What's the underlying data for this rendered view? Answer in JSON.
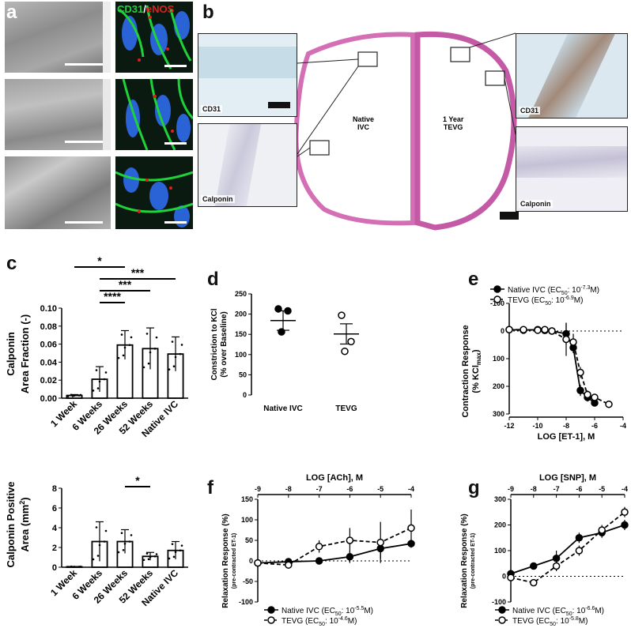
{
  "panels": {
    "a": "a",
    "b": "b",
    "c": "c",
    "d": "d",
    "e": "e",
    "f": "f",
    "g": "g"
  },
  "panel_a": {
    "label_cd31": "CD31",
    "label_slash": "/",
    "label_enos": "eNOS",
    "colors": {
      "cd31": "#1fd23a",
      "enos": "#e81b1b",
      "nuclei": "#2a63d6"
    }
  },
  "panel_b": {
    "native_label_1": "Native",
    "native_label_2": "IVC",
    "tevg_label_1": "1 Year",
    "tevg_label_2": "TEVG",
    "inset_cd31_left": "CD31",
    "inset_calponin_left": "Calponin",
    "inset_cd31_right": "CD31",
    "inset_calponin_right": "Calponin"
  },
  "chart_data": [
    {
      "id": "c_top",
      "type": "bar",
      "categories": [
        "1 Week",
        "6 Weeks",
        "26 Weeks",
        "52 Weeks",
        "Native IVC"
      ],
      "values": [
        0.003,
        0.021,
        0.059,
        0.055,
        0.049
      ],
      "errors": [
        0.001,
        0.014,
        0.016,
        0.023,
        0.019
      ],
      "ylabel_1": "Calponin",
      "ylabel_2": "Area Fraction (-)",
      "ylim": [
        0,
        0.1
      ],
      "yticks": [
        "0.00",
        "0.02",
        "0.04",
        "0.06",
        "0.08",
        "0.10"
      ],
      "significance": [
        {
          "from": 0,
          "to": 2,
          "label": "*"
        },
        {
          "from": 1,
          "to": 4,
          "label": "***"
        },
        {
          "from": 1,
          "to": 3,
          "label": "***"
        },
        {
          "from": 1,
          "to": 2,
          "label": "****"
        }
      ]
    },
    {
      "id": "c_bottom",
      "type": "bar",
      "categories": [
        "1 Week",
        "6 Weeks",
        "26 Weeks",
        "52 Weeks",
        "Native IVC"
      ],
      "values": [
        0.05,
        2.6,
        2.6,
        1.1,
        1.7
      ],
      "errors": [
        0.02,
        2.0,
        1.2,
        0.4,
        0.9
      ],
      "ylabel_1": "Calponin Positive",
      "ylabel_2": "Area (mm",
      "ylabel_sup": "2",
      "ylabel_end": ")",
      "ylim": [
        0,
        8
      ],
      "yticks": [
        "0",
        "2",
        "4",
        "6",
        "8"
      ],
      "significance": [
        {
          "from": 1,
          "to": 3,
          "label": "*"
        },
        {
          "from": 2,
          "to": 3,
          "label": "*"
        }
      ]
    },
    {
      "id": "d",
      "type": "scatter",
      "categories": [
        "Native IVC",
        "TEVG"
      ],
      "points": [
        [
          213,
          208,
          156
        ],
        [
          197,
          132,
          108
        ]
      ],
      "means": [
        184,
        151
      ],
      "sem": [
        24,
        25
      ],
      "ylabel_1": "Constriction to KCl",
      "ylabel_2": "(% over Baseline)",
      "ylim": [
        0,
        250
      ],
      "yticks": [
        "0",
        "50",
        "100",
        "150",
        "200",
        "250"
      ]
    },
    {
      "id": "e",
      "type": "line",
      "xlabel": "LOG [ET-1], M",
      "ylabel_1": "Contraction Response",
      "ylabel_2": "(% KCl",
      "ylabel_sub": "max",
      "ylabel_end": ")",
      "xlim": [
        -12,
        -4
      ],
      "ylim": [
        -100,
        300
      ],
      "xticks": [
        "-12",
        "-10",
        "-8",
        "-6",
        "-4"
      ],
      "yticks": [
        "-100",
        "0",
        "100",
        "200",
        "300"
      ],
      "series": [
        {
          "legend_prefix": "Native IVC (EC",
          "legend_sub": "50",
          "legend_mid": ": 10",
          "legend_sup": "-7.3",
          "legend_end": "M)",
          "x": [
            -12,
            -11,
            -10,
            -9.5,
            -9,
            -8,
            -7.5,
            -7,
            -6.5,
            -6
          ],
          "y": [
            -5,
            -3,
            -5,
            -2,
            0,
            10,
            60,
            215,
            240,
            260
          ],
          "err": [
            0,
            0,
            0,
            0,
            0,
            40,
            20,
            20,
            15,
            10
          ]
        },
        {
          "legend_prefix": "TEVG (EC",
          "legend_sub": "50",
          "legend_mid": ": 10",
          "legend_sup": "-6.9",
          "legend_end": "M)",
          "x": [
            -12,
            -11,
            -10,
            -9.5,
            -9,
            -8,
            -7.5,
            -7,
            -6.5,
            -6,
            -5
          ],
          "y": [
            -5,
            -5,
            -3,
            -5,
            0,
            30,
            40,
            150,
            230,
            240,
            265
          ],
          "err": [
            0,
            0,
            0,
            0,
            0,
            60,
            30,
            20,
            15,
            10,
            5
          ]
        }
      ]
    },
    {
      "id": "f",
      "type": "line",
      "xlabel": "LOG [ACh], M",
      "ylabel_1": "Relaxation Response (%)",
      "ylabel_2": "(pre-contracted ET-1)",
      "xlim": [
        -9,
        -4
      ],
      "ylim": [
        150,
        -100
      ],
      "xticks": [
        "-9",
        "-8",
        "-7",
        "-6",
        "-5",
        "-4"
      ],
      "yticks": [
        "-100",
        "-50",
        "0",
        "50",
        "100",
        "150"
      ],
      "series": [
        {
          "legend_prefix": "Native IVC (EC",
          "legend_sub": "50",
          "legend_mid": ": 10",
          "legend_sup": "-5.5",
          "legend_end": "M)",
          "x": [
            -9,
            -8,
            -7,
            -6,
            -5,
            -4
          ],
          "y": [
            -5,
            -2,
            0,
            10,
            30,
            42
          ],
          "err": [
            0,
            0,
            0,
            15,
            25,
            10
          ]
        },
        {
          "legend_prefix": "TEVG  (EC",
          "legend_sub": "50",
          "legend_mid": ": 10",
          "legend_sup": "-4.6",
          "legend_end": "M)",
          "x": [
            -9,
            -8,
            -7,
            -6,
            -5,
            -4
          ],
          "y": [
            -5,
            -10,
            35,
            50,
            45,
            80
          ],
          "err": [
            0,
            0,
            15,
            30,
            50,
            45
          ]
        }
      ]
    },
    {
      "id": "g",
      "type": "line",
      "xlabel": "LOG [SNP], M",
      "ylabel_1": "Relaxation Response (%)",
      "ylabel_2": "(pre-contracted ET-1)",
      "xlim": [
        -9,
        -4
      ],
      "ylim": [
        300,
        -100
      ],
      "xticks": [
        "-9",
        "-8",
        "-7",
        "-6",
        "-5",
        "-4"
      ],
      "yticks": [
        "-100",
        "0",
        "100",
        "200",
        "300"
      ],
      "series": [
        {
          "legend_prefix": "Native IVC (EC",
          "legend_sub": "50",
          "legend_mid": ": 10",
          "legend_sup": "-6.6",
          "legend_end": "M)",
          "x": [
            -9,
            -8,
            -7,
            -6,
            -5,
            -4
          ],
          "y": [
            10,
            40,
            70,
            150,
            170,
            200
          ],
          "err": [
            0,
            0,
            30,
            20,
            20,
            20
          ]
        },
        {
          "legend_prefix": "TEVG (EC",
          "legend_sub": "50",
          "legend_mid": ": 10",
          "legend_sup": "-5.8",
          "legend_end": "M)",
          "x": [
            -9,
            -8,
            -7,
            -6,
            -5,
            -4
          ],
          "y": [
            -5,
            -25,
            40,
            100,
            180,
            250
          ],
          "err": [
            0,
            0,
            20,
            20,
            20,
            20
          ]
        }
      ]
    }
  ]
}
